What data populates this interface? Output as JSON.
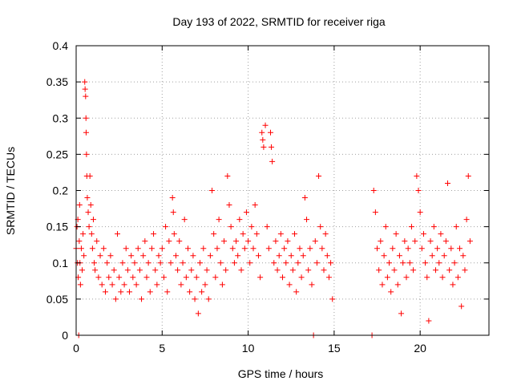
{
  "chart_data": {
    "type": "scatter",
    "title": "Day 193 of 2022, SRMTID for receiver riga",
    "xlabel": "GPS time / hours",
    "ylabel": "SRMTID / TECUs",
    "xlim": [
      0,
      24
    ],
    "ylim": [
      0,
      0.4
    ],
    "xticks": [
      0,
      5,
      10,
      15,
      20
    ],
    "yticks": [
      0,
      0.05,
      0.1,
      0.15,
      0.2,
      0.25,
      0.3,
      0.35,
      0.4
    ],
    "xtick_labels": [
      "0",
      "5",
      "10",
      "15",
      "20"
    ],
    "ytick_labels": [
      "0",
      "0.05",
      "0.1",
      "0.15",
      "0.2",
      "0.25",
      "0.3",
      "0.35",
      "0.4"
    ],
    "grid": true,
    "marker": "plus",
    "color": "#ff0000",
    "legend": "none",
    "series": [
      {
        "points": [
          [
            0.0,
            0.12
          ],
          [
            0.05,
            0.15
          ],
          [
            0.08,
            0.1
          ],
          [
            0.1,
            0.16
          ],
          [
            0.12,
            0.08
          ],
          [
            0.15,
            0.0
          ],
          [
            0.18,
            0.13
          ],
          [
            0.2,
            0.18
          ],
          [
            0.22,
            0.1
          ],
          [
            0.25,
            0.07
          ],
          [
            0.3,
            0.12
          ],
          [
            0.35,
            0.09
          ],
          [
            0.4,
            0.14
          ],
          [
            0.45,
            0.11
          ],
          [
            0.5,
            0.35
          ],
          [
            0.52,
            0.34
          ],
          [
            0.55,
            0.33
          ],
          [
            0.57,
            0.3
          ],
          [
            0.58,
            0.28
          ],
          [
            0.6,
            0.25
          ],
          [
            0.62,
            0.22
          ],
          [
            0.65,
            0.19
          ],
          [
            0.7,
            0.17
          ],
          [
            0.75,
            0.15
          ],
          [
            0.8,
            0.22
          ],
          [
            0.85,
            0.18
          ],
          [
            0.9,
            0.14
          ],
          [
            0.95,
            0.12
          ],
          [
            1.0,
            0.16
          ],
          [
            1.05,
            0.1
          ],
          [
            1.1,
            0.09
          ],
          [
            1.2,
            0.13
          ],
          [
            1.3,
            0.08
          ],
          [
            1.4,
            0.11
          ],
          [
            1.5,
            0.07
          ],
          [
            1.6,
            0.12
          ],
          [
            1.7,
            0.06
          ],
          [
            1.8,
            0.1
          ],
          [
            1.9,
            0.08
          ],
          [
            2.0,
            0.11
          ],
          [
            2.1,
            0.07
          ],
          [
            2.2,
            0.09
          ],
          [
            2.3,
            0.05
          ],
          [
            2.4,
            0.14
          ],
          [
            2.5,
            0.08
          ],
          [
            2.6,
            0.06
          ],
          [
            2.7,
            0.1
          ],
          [
            2.8,
            0.07
          ],
          [
            2.9,
            0.12
          ],
          [
            3.0,
            0.09
          ],
          [
            3.1,
            0.06
          ],
          [
            3.2,
            0.11
          ],
          [
            3.3,
            0.08
          ],
          [
            3.4,
            0.1
          ],
          [
            3.5,
            0.07
          ],
          [
            3.6,
            0.12
          ],
          [
            3.7,
            0.09
          ],
          [
            3.8,
            0.05
          ],
          [
            3.9,
            0.11
          ],
          [
            4.0,
            0.13
          ],
          [
            4.1,
            0.08
          ],
          [
            4.2,
            0.1
          ],
          [
            4.3,
            0.06
          ],
          [
            4.4,
            0.12
          ],
          [
            4.5,
            0.14
          ],
          [
            4.6,
            0.09
          ],
          [
            4.7,
            0.07
          ],
          [
            4.8,
            0.11
          ],
          [
            4.9,
            0.1
          ],
          [
            5.0,
            0.12
          ],
          [
            5.1,
            0.08
          ],
          [
            5.2,
            0.15
          ],
          [
            5.3,
            0.06
          ],
          [
            5.4,
            0.13
          ],
          [
            5.5,
            0.1
          ],
          [
            5.6,
            0.19
          ],
          [
            5.65,
            0.17
          ],
          [
            5.7,
            0.14
          ],
          [
            5.8,
            0.11
          ],
          [
            5.9,
            0.09
          ],
          [
            6.0,
            0.13
          ],
          [
            6.1,
            0.07
          ],
          [
            6.2,
            0.1
          ],
          [
            6.3,
            0.16
          ],
          [
            6.4,
            0.08
          ],
          [
            6.5,
            0.12
          ],
          [
            6.6,
            0.06
          ],
          [
            6.7,
            0.09
          ],
          [
            6.8,
            0.11
          ],
          [
            6.9,
            0.05
          ],
          [
            7.0,
            0.08
          ],
          [
            7.1,
            0.03
          ],
          [
            7.2,
            0.1
          ],
          [
            7.3,
            0.06
          ],
          [
            7.4,
            0.12
          ],
          [
            7.5,
            0.07
          ],
          [
            7.6,
            0.09
          ],
          [
            7.7,
            0.05
          ],
          [
            7.8,
            0.11
          ],
          [
            7.9,
            0.2
          ],
          [
            8.0,
            0.14
          ],
          [
            8.1,
            0.08
          ],
          [
            8.2,
            0.12
          ],
          [
            8.3,
            0.16
          ],
          [
            8.4,
            0.1
          ],
          [
            8.5,
            0.07
          ],
          [
            8.6,
            0.13
          ],
          [
            8.7,
            0.09
          ],
          [
            8.8,
            0.22
          ],
          [
            8.9,
            0.18
          ],
          [
            9.0,
            0.15
          ],
          [
            9.1,
            0.12
          ],
          [
            9.2,
            0.1
          ],
          [
            9.3,
            0.13
          ],
          [
            9.4,
            0.11
          ],
          [
            9.5,
            0.16
          ],
          [
            9.6,
            0.09
          ],
          [
            9.7,
            0.14
          ],
          [
            9.8,
            0.12
          ],
          [
            9.9,
            0.17
          ],
          [
            10.0,
            0.13
          ],
          [
            10.1,
            0.1
          ],
          [
            10.2,
            0.15
          ],
          [
            10.3,
            0.12
          ],
          [
            10.4,
            0.18
          ],
          [
            10.5,
            0.14
          ],
          [
            10.6,
            0.11
          ],
          [
            10.7,
            0.08
          ],
          [
            10.8,
            0.28
          ],
          [
            10.85,
            0.27
          ],
          [
            10.9,
            0.26
          ],
          [
            11.0,
            0.29
          ],
          [
            11.1,
            0.15
          ],
          [
            11.2,
            0.12
          ],
          [
            11.3,
            0.28
          ],
          [
            11.35,
            0.26
          ],
          [
            11.4,
            0.24
          ],
          [
            11.5,
            0.1
          ],
          [
            11.6,
            0.13
          ],
          [
            11.7,
            0.09
          ],
          [
            11.8,
            0.11
          ],
          [
            11.9,
            0.14
          ],
          [
            12.0,
            0.08
          ],
          [
            12.1,
            0.12
          ],
          [
            12.2,
            0.1
          ],
          [
            12.3,
            0.13
          ],
          [
            12.4,
            0.07
          ],
          [
            12.5,
            0.11
          ],
          [
            12.6,
            0.09
          ],
          [
            12.7,
            0.14
          ],
          [
            12.8,
            0.06
          ],
          [
            12.9,
            0.1
          ],
          [
            13.0,
            0.12
          ],
          [
            13.1,
            0.08
          ],
          [
            13.2,
            0.11
          ],
          [
            13.3,
            0.19
          ],
          [
            13.4,
            0.16
          ],
          [
            13.5,
            0.09
          ],
          [
            13.6,
            0.12
          ],
          [
            13.7,
            0.07
          ],
          [
            13.8,
            0.0
          ],
          [
            13.9,
            0.13
          ],
          [
            14.0,
            0.1
          ],
          [
            14.1,
            0.22
          ],
          [
            14.2,
            0.15
          ],
          [
            14.3,
            0.12
          ],
          [
            14.4,
            0.09
          ],
          [
            14.5,
            0.14
          ],
          [
            14.6,
            0.11
          ],
          [
            14.7,
            0.08
          ],
          [
            14.8,
            0.1
          ],
          [
            14.9,
            0.05
          ],
          [
            17.2,
            0.0
          ],
          [
            17.3,
            0.2
          ],
          [
            17.4,
            0.17
          ],
          [
            17.5,
            0.12
          ],
          [
            17.6,
            0.09
          ],
          [
            17.7,
            0.13
          ],
          [
            17.8,
            0.07
          ],
          [
            17.9,
            0.11
          ],
          [
            18.0,
            0.15
          ],
          [
            18.1,
            0.08
          ],
          [
            18.2,
            0.1
          ],
          [
            18.3,
            0.06
          ],
          [
            18.4,
            0.12
          ],
          [
            18.5,
            0.09
          ],
          [
            18.6,
            0.14
          ],
          [
            18.7,
            0.07
          ],
          [
            18.8,
            0.11
          ],
          [
            18.9,
            0.03
          ],
          [
            19.0,
            0.1
          ],
          [
            19.1,
            0.13
          ],
          [
            19.2,
            0.08
          ],
          [
            19.3,
            0.12
          ],
          [
            19.4,
            0.1
          ],
          [
            19.5,
            0.15
          ],
          [
            19.6,
            0.09
          ],
          [
            19.7,
            0.13
          ],
          [
            19.8,
            0.22
          ],
          [
            19.9,
            0.2
          ],
          [
            20.0,
            0.17
          ],
          [
            20.1,
            0.12
          ],
          [
            20.2,
            0.14
          ],
          [
            20.3,
            0.1
          ],
          [
            20.4,
            0.08
          ],
          [
            20.5,
            0.02
          ],
          [
            20.6,
            0.13
          ],
          [
            20.7,
            0.11
          ],
          [
            20.8,
            0.15
          ],
          [
            20.9,
            0.09
          ],
          [
            21.0,
            0.12
          ],
          [
            21.1,
            0.1
          ],
          [
            21.2,
            0.14
          ],
          [
            21.3,
            0.08
          ],
          [
            21.4,
            0.11
          ],
          [
            21.5,
            0.13
          ],
          [
            21.6,
            0.21
          ],
          [
            21.7,
            0.09
          ],
          [
            21.8,
            0.12
          ],
          [
            21.9,
            0.07
          ],
          [
            22.0,
            0.1
          ],
          [
            22.1,
            0.15
          ],
          [
            22.2,
            0.08
          ],
          [
            22.3,
            0.12
          ],
          [
            22.4,
            0.04
          ],
          [
            22.5,
            0.11
          ],
          [
            22.6,
            0.09
          ],
          [
            22.7,
            0.16
          ],
          [
            22.8,
            0.22
          ],
          [
            22.9,
            0.13
          ]
        ]
      }
    ]
  }
}
